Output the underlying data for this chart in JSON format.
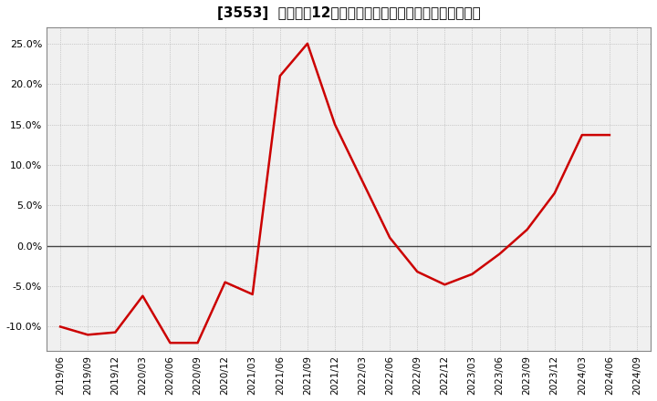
{
  "title": "[3553]  売上高の12か月移動合計の対前年同期増減率の推移",
  "line_color": "#cc0000",
  "bg_color": "#ffffff",
  "plot_bg_color": "#f0f0f0",
  "grid_color": "#999999",
  "ylim": [
    -0.13,
    0.27
  ],
  "yticks": [
    -0.1,
    -0.05,
    0.0,
    0.05,
    0.1,
    0.15,
    0.2,
    0.25
  ],
  "xtick_labels": [
    "2019/06",
    "2019/09",
    "2019/12",
    "2020/03",
    "2020/06",
    "2020/09",
    "2020/12",
    "2021/03",
    "2021/06",
    "2021/09",
    "2021/12",
    "2022/03",
    "2022/06",
    "2022/09",
    "2022/12",
    "2023/03",
    "2023/06",
    "2023/09",
    "2023/12",
    "2024/03",
    "2024/06",
    "2024/09"
  ],
  "dates": [
    "2019/06",
    "2019/09",
    "2019/12",
    "2020/03",
    "2020/06",
    "2020/09",
    "2020/12",
    "2021/03",
    "2021/06",
    "2021/09",
    "2021/12",
    "2022/03",
    "2022/06",
    "2022/09",
    "2022/12",
    "2023/03",
    "2023/06",
    "2023/09",
    "2023/12",
    "2024/03",
    "2024/06"
  ],
  "values": [
    -0.1,
    -0.11,
    -0.107,
    -0.062,
    -0.12,
    -0.12,
    -0.045,
    -0.06,
    0.21,
    0.25,
    0.15,
    0.08,
    0.01,
    -0.032,
    -0.048,
    -0.035,
    -0.01,
    0.02,
    0.065,
    0.137,
    0.137
  ]
}
